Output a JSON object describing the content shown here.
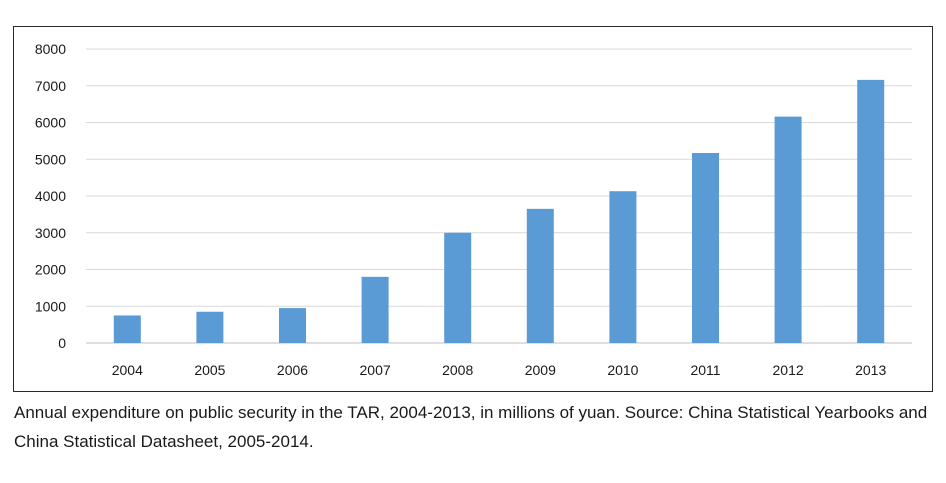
{
  "caption": "Annual expenditure on public security in the TAR, 2004-2013, in millions of yuan. Source: China Statistical Yearbooks and China Statistical Datasheet, 2005-2014.",
  "chart_data": {
    "type": "bar",
    "categories": [
      "2004",
      "2005",
      "2006",
      "2007",
      "2008",
      "2009",
      "2010",
      "2011",
      "2012",
      "2013"
    ],
    "values": [
      750,
      850,
      950,
      1800,
      3000,
      3650,
      4130,
      5170,
      6160,
      7160
    ],
    "title": "",
    "xlabel": "",
    "ylabel": "",
    "ylim": [
      0,
      8000
    ],
    "yticks": [
      0,
      1000,
      2000,
      3000,
      4000,
      5000,
      6000,
      7000,
      8000
    ],
    "grid": true,
    "legend": "none",
    "bar_color": "#5b9bd5",
    "grid_color": "#d9d9d9"
  }
}
